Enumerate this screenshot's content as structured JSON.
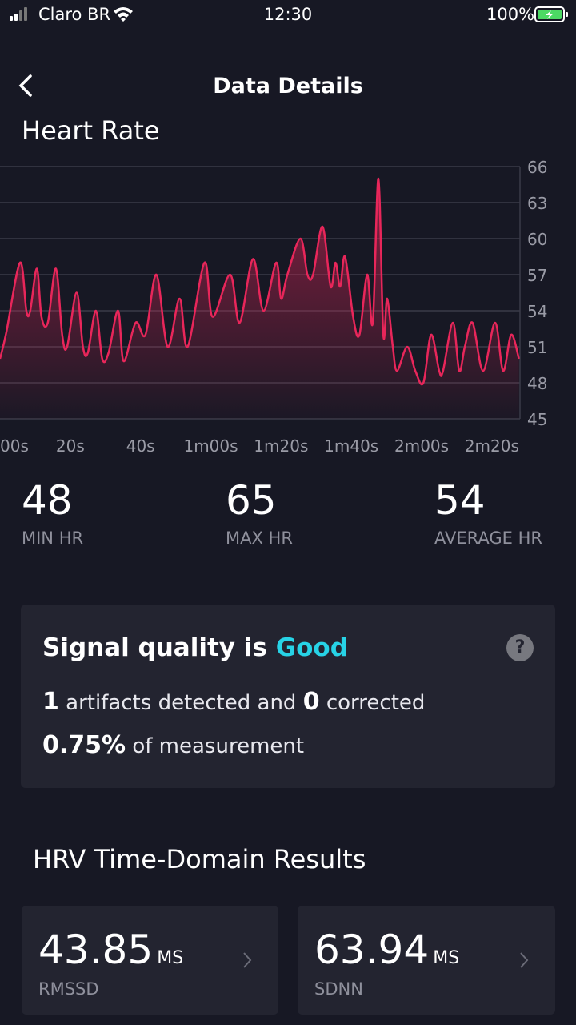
{
  "status_bar": {
    "carrier": "Claro BR",
    "time": "12:30",
    "battery": "100%"
  },
  "header": {
    "title": "Data Details"
  },
  "chart_data": {
    "type": "line",
    "title": "Heart Rate",
    "x": [
      0,
      1.8,
      5.7,
      7.5,
      8.6,
      10.5,
      11.8,
      13.6,
      15.9,
      17.7,
      19.1,
      21.8,
      23.6,
      25,
      27.3,
      29.1,
      30.9,
      33.6,
      35.2,
      38.6,
      41.4,
      44.5,
      47.7,
      51.1,
      53.4,
      58.2,
      60.5,
      65.5,
      68.2,
      72,
      75,
      78.6,
      80,
      81.8,
      85.5,
      87.5,
      89.1,
      91.8,
      94.1,
      95.5,
      96.8,
      98.2,
      100.5,
      102.3,
      104.5,
      106.1,
      107.7,
      109.1,
      110.2,
      111.8,
      113,
      115.9,
      118.2,
      120.5,
      122.7,
      125,
      126.1,
      128.9,
      130.7,
      132.3,
      134.5,
      137.5,
      140.9,
      143.2,
      145.5,
      147.7
    ],
    "series": [
      {
        "color": "#e8265a",
        "values": [
          50,
          52.2,
          58,
          54,
          54,
          57.5,
          53.5,
          53,
          57.5,
          52,
          51,
          55.5,
          51,
          50.5,
          54,
          50,
          50.5,
          54,
          49.8,
          53,
          52,
          57,
          51,
          55,
          51,
          58,
          53.5,
          57,
          53,
          58.3,
          54,
          58,
          55,
          57,
          60,
          57,
          57,
          61,
          56,
          58,
          56,
          58.5,
          53.5,
          52,
          57,
          53,
          65,
          52,
          55,
          51,
          49,
          51,
          49,
          48,
          52,
          49,
          49,
          53,
          49,
          51,
          53,
          49,
          53,
          49,
          52,
          50
        ]
      }
    ],
    "xlim": [
      0,
      148
    ],
    "ylim": [
      45,
      66
    ],
    "yticks": [
      45,
      48,
      51,
      54,
      57,
      60,
      63,
      66
    ],
    "xticks": [
      {
        "value": 0,
        "label": "00s"
      },
      {
        "value": 20,
        "label": "20s"
      },
      {
        "value": 40,
        "label": "40s"
      },
      {
        "value": 60,
        "label": "1m00s"
      },
      {
        "value": 80,
        "label": "1m20s"
      },
      {
        "value": 100,
        "label": "1m40s"
      },
      {
        "value": 120,
        "label": "2m00s"
      },
      {
        "value": 140,
        "label": "2m20s"
      }
    ],
    "grid": true
  },
  "stats": [
    {
      "value": "48",
      "label": "MIN HR"
    },
    {
      "value": "65",
      "label": "MAX HR"
    },
    {
      "value": "54",
      "label": "AVERAGE HR"
    }
  ],
  "signal": {
    "title": "Signal quality is",
    "quality": "Good",
    "help": "?",
    "artifacts": "1",
    "artifacts_text": "artifacts detected and",
    "corrected": "0",
    "corrected_text": "corrected",
    "percent": "0.75%",
    "percent_text": "of measurement"
  },
  "hrv": {
    "title": "HRV Time-Domain Results",
    "cards": [
      {
        "value": "43.85",
        "unit": "MS",
        "label": "RMSSD"
      },
      {
        "value": "63.94",
        "unit": "MS",
        "label": "SDNN"
      }
    ]
  }
}
